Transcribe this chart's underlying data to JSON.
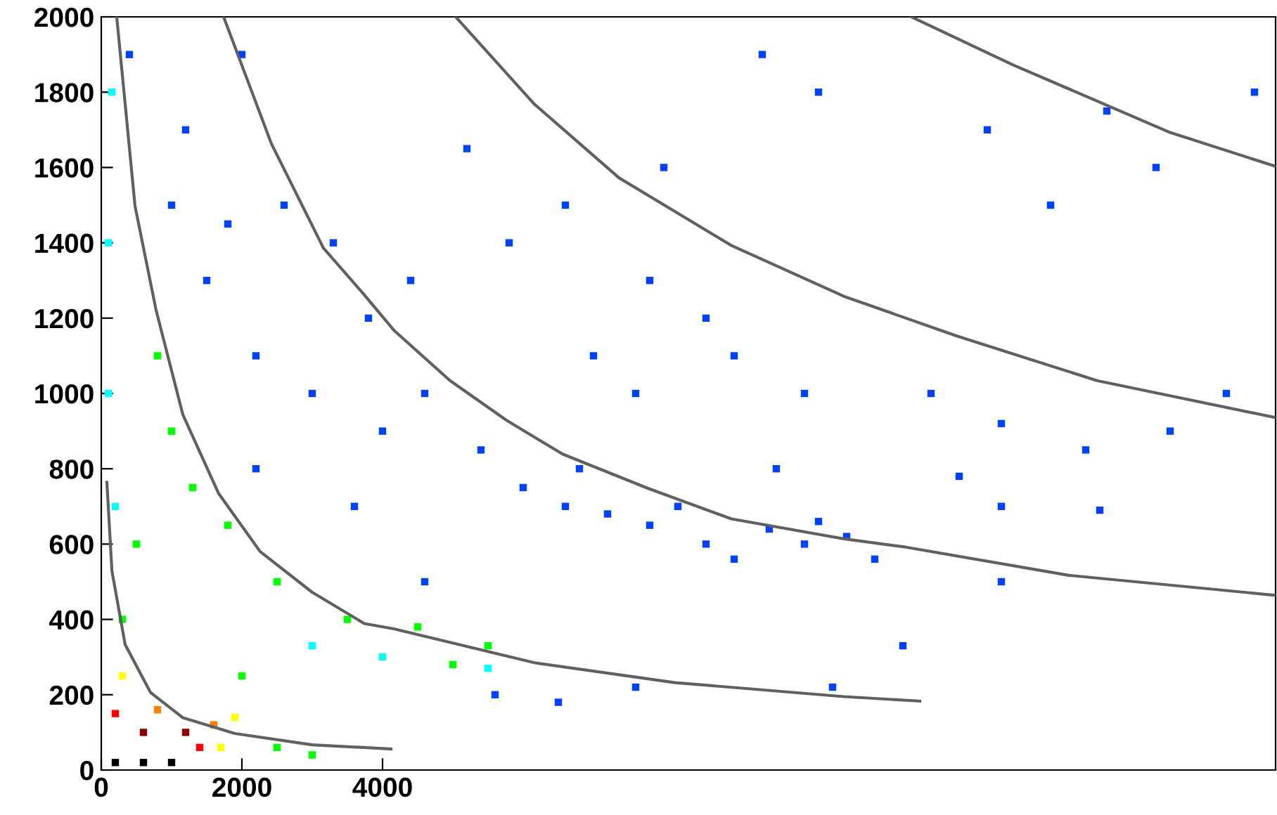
{
  "chart_data": {
    "type": "scatter",
    "xlim": [
      0,
      16700
    ],
    "ylim": [
      0,
      2000
    ],
    "xticks": [
      0,
      2000,
      4000
    ],
    "yticks": [
      0,
      200,
      400,
      600,
      800,
      1000,
      1200,
      1400,
      1600,
      1800,
      2000
    ],
    "grid": false,
    "series": [
      {
        "marker": "square",
        "x": [
          200,
          600,
          1000,
          600,
          1200,
          200,
          1400,
          1600,
          800,
          1700,
          300,
          1900,
          2500,
          3000,
          300,
          2000,
          500,
          800,
          1000,
          1300,
          1800,
          2500,
          3500,
          4500,
          5500,
          5000,
          4000,
          5500,
          3000,
          100,
          150,
          100,
          200,
          400,
          1200,
          2000,
          2600,
          3300,
          3800,
          1500,
          2200,
          3000,
          4000,
          4600,
          5400,
          6000,
          6600,
          7200,
          7800,
          8600,
          9000,
          10000,
          10600,
          11000,
          10200,
          9500,
          8200,
          6800,
          5800,
          6600,
          7800,
          9000,
          10000,
          11800,
          12800,
          14000,
          15200,
          16000,
          13500,
          12600,
          15000,
          14300,
          16400,
          10200,
          9400,
          8000,
          8600,
          7000,
          7600,
          9600,
          12200,
          12800,
          14200,
          4600,
          5600,
          6500,
          7600,
          10400,
          11400,
          12800,
          2200,
          3600,
          1000,
          1800,
          4400,
          5200
        ],
        "values": [
          20,
          20,
          20,
          100,
          100,
          150,
          60,
          120,
          160,
          60,
          250,
          140,
          60,
          40,
          400,
          250,
          600,
          1100,
          900,
          750,
          650,
          500,
          400,
          380,
          330,
          280,
          300,
          270,
          330,
          1400,
          1800,
          1000,
          700,
          1900,
          1700,
          1900,
          1500,
          1400,
          1200,
          1300,
          1100,
          1000,
          900,
          1000,
          850,
          750,
          700,
          680,
          650,
          600,
          560,
          600,
          620,
          560,
          660,
          640,
          700,
          800,
          1400,
          1500,
          1300,
          1100,
          1000,
          1000,
          920,
          850,
          900,
          1000,
          1500,
          1700,
          1600,
          1750,
          1800,
          1800,
          1900,
          1600,
          1200,
          1100,
          1000,
          800,
          780,
          700,
          690,
          500,
          200,
          180,
          220,
          220,
          330,
          500,
          800,
          700,
          1500,
          1450,
          1300,
          1650
        ],
        "colors": [
          "#000000",
          "#000000",
          "#000000",
          "#8b0000",
          "#8b0000",
          "#ff0000",
          "#ff0000",
          "#ff8000",
          "#ff8000",
          "#ffff00",
          "#ffff00",
          "#ffff00",
          "#00ff00",
          "#00ff00",
          "#00ff00",
          "#00ff00",
          "#00ff00",
          "#00ff00",
          "#00ff00",
          "#00ff00",
          "#00ff00",
          "#00ff00",
          "#00ff00",
          "#00ff00",
          "#00ff00",
          "#00ff00",
          "#00ffff",
          "#00ffff",
          "#00ffff",
          "#00ffff",
          "#00ffff",
          "#00ffff",
          "#00ffff",
          "#0040ff",
          "#0040ff",
          "#0040ff",
          "#0040ff",
          "#0040ff",
          "#0040ff",
          "#0040ff",
          "#0040ff",
          "#0040ff",
          "#0040ff",
          "#0040ff",
          "#0040ff",
          "#0040ff",
          "#0040ff",
          "#0040ff",
          "#0040ff",
          "#0040ff",
          "#0040ff",
          "#0040ff",
          "#0040ff",
          "#0040ff",
          "#0040ff",
          "#0040ff",
          "#0040ff",
          "#0040ff",
          "#0040ff",
          "#0040ff",
          "#0040ff",
          "#0040ff",
          "#0040ff",
          "#0040ff",
          "#0040ff",
          "#0040ff",
          "#0040ff",
          "#0040ff",
          "#0040ff",
          "#0040ff",
          "#0040ff",
          "#0040ff",
          "#0040ff",
          "#0040ff",
          "#0040ff",
          "#0040ff",
          "#0040ff",
          "#0040ff",
          "#0040ff",
          "#0040ff",
          "#0040ff",
          "#0040ff",
          "#0040ff",
          "#0040ff",
          "#0040ff",
          "#0040ff",
          "#0040ff",
          "#0040ff",
          "#0040ff",
          "#0040ff",
          "#0040ff",
          "#0040ff",
          "#0040ff",
          "#0040ff",
          "#0040ff",
          "#0040ff"
        ]
      },
      {
        "type": "line",
        "marker": "none",
        "color": "#606060",
        "x": [
          80,
          152,
          340,
          700,
          1160,
          1900,
          3000,
          4120
        ],
        "values": [
          764,
          528,
          333,
          206,
          139,
          97,
          67,
          56
        ]
      },
      {
        "type": "line",
        "marker": "none",
        "color": "#606060",
        "x": [
          220,
          480,
          780,
          1160,
          1670,
          2260,
          3000,
          3740,
          4160,
          6160,
          8160,
          10560,
          11640
        ],
        "values": [
          2000,
          1498,
          1221,
          944,
          734,
          580,
          472,
          389,
          375,
          285,
          232,
          195,
          183
        ]
      },
      {
        "type": "line",
        "marker": "none",
        "color": "#606060",
        "x": [
          1740,
          2420,
          3160,
          3740,
          4160,
          4960,
          5760,
          6560,
          7760,
          8960,
          10560,
          11440,
          13760,
          16700
        ],
        "values": [
          2000,
          1663,
          1386,
          1262,
          1168,
          1034,
          929,
          839,
          749,
          667,
          614,
          592,
          517,
          464
        ]
      },
      {
        "type": "line",
        "marker": "none",
        "color": "#606060",
        "x": [
          5040,
          6160,
          7360,
          8960,
          10560,
          12160,
          14160,
          16700
        ],
        "values": [
          2000,
          1768,
          1573,
          1393,
          1258,
          1153,
          1034,
          936
        ]
      },
      {
        "type": "line",
        "marker": "none",
        "color": "#606060",
        "x": [
          11520,
          12960,
          15200,
          16700
        ],
        "values": [
          2000,
          1873,
          1693,
          1603
        ]
      }
    ]
  }
}
